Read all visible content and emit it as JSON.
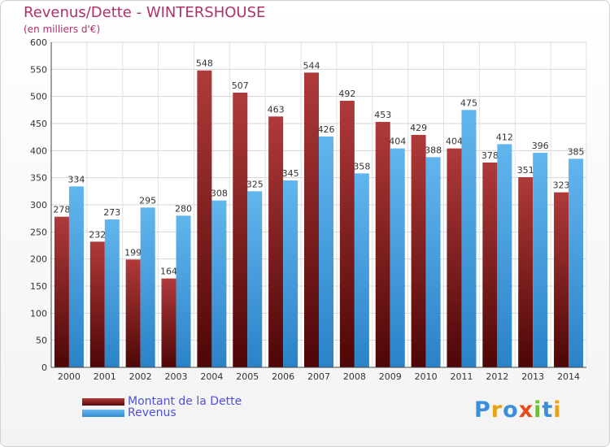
{
  "title": "Revenus/Dette - WINTERSHOUSE",
  "subtitle": "(en milliers d'€)",
  "logo_text": "Proxiti",
  "colors": {
    "debt": "#7a1a1a",
    "revenue": "#4aa3e6",
    "title": "#b0306a",
    "legend_text": "#5050d8"
  },
  "chart_data": {
    "type": "bar",
    "categories": [
      "2000",
      "2001",
      "2002",
      "2003",
      "2004",
      "2005",
      "2006",
      "2007",
      "2008",
      "2009",
      "2010",
      "2011",
      "2012",
      "2013",
      "2014"
    ],
    "series": [
      {
        "name": "Montant de la Dette",
        "values": [
          278,
          232,
          199,
          164,
          548,
          507,
          463,
          544,
          492,
          453,
          429,
          404,
          378,
          351,
          323
        ]
      },
      {
        "name": "Revenus",
        "values": [
          334,
          273,
          295,
          280,
          308,
          325,
          345,
          426,
          358,
          404,
          388,
          475,
          412,
          396,
          385
        ]
      }
    ],
    "yticks": [
      0,
      50,
      100,
      150,
      200,
      250,
      300,
      350,
      400,
      450,
      500,
      550,
      600
    ],
    "ylim": [
      0,
      600
    ],
    "grid": true,
    "legend_position": "bottom-left"
  }
}
